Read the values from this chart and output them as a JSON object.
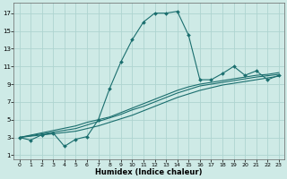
{
  "background_color": "#ceeae6",
  "grid_color": "#aed4d0",
  "line_color": "#1a6e6e",
  "xlabel": "Humidex (Indice chaleur)",
  "xlim": [
    -0.5,
    23.5
  ],
  "ylim": [
    0.5,
    18.2
  ],
  "xticks": [
    0,
    1,
    2,
    3,
    4,
    5,
    6,
    7,
    8,
    9,
    10,
    11,
    12,
    13,
    14,
    15,
    16,
    17,
    18,
    19,
    20,
    21,
    22,
    23
  ],
  "yticks": [
    1,
    3,
    5,
    7,
    9,
    11,
    13,
    15,
    17
  ],
  "series": [
    {
      "x": [
        0,
        1,
        2,
        3,
        4,
        5,
        6,
        7,
        8,
        9,
        10,
        11,
        12,
        13,
        14,
        15,
        16,
        17,
        18,
        19,
        20,
        21,
        22,
        23
      ],
      "y": [
        3,
        2.7,
        3.3,
        3.5,
        2,
        2.8,
        3.1,
        5.0,
        8.5,
        11.5,
        14,
        16,
        17,
        17,
        17.2,
        14.5,
        9.5,
        9.5,
        10.2,
        11,
        10,
        10.5,
        9.5,
        10
      ],
      "marker": true
    },
    {
      "x": [
        0,
        5,
        6,
        7,
        8,
        9,
        10,
        11,
        12,
        13,
        14,
        15,
        16,
        17,
        18,
        19,
        20,
        21,
        22,
        23
      ],
      "y": [
        3,
        4.3,
        4.7,
        5.0,
        5.3,
        5.8,
        6.3,
        6.8,
        7.3,
        7.8,
        8.3,
        8.7,
        9.0,
        9.2,
        9.4,
        9.6,
        9.8,
        10.0,
        10.1,
        10.3
      ],
      "marker": false
    },
    {
      "x": [
        0,
        5,
        6,
        7,
        8,
        9,
        10,
        11,
        12,
        13,
        14,
        15,
        16,
        17,
        18,
        19,
        20,
        21,
        22,
        23
      ],
      "y": [
        3,
        4.0,
        4.4,
        4.8,
        5.2,
        5.6,
        6.1,
        6.5,
        7.0,
        7.5,
        8.0,
        8.4,
        8.8,
        9.0,
        9.2,
        9.4,
        9.6,
        9.8,
        9.95,
        10.1
      ],
      "marker": false
    },
    {
      "x": [
        0,
        5,
        6,
        7,
        8,
        9,
        10,
        11,
        12,
        13,
        14,
        15,
        16,
        17,
        18,
        19,
        20,
        21,
        22,
        23
      ],
      "y": [
        3,
        3.7,
        4.0,
        4.3,
        4.7,
        5.1,
        5.5,
        6.0,
        6.5,
        7.0,
        7.5,
        7.9,
        8.3,
        8.6,
        8.9,
        9.1,
        9.3,
        9.5,
        9.7,
        9.9
      ],
      "marker": false
    }
  ]
}
